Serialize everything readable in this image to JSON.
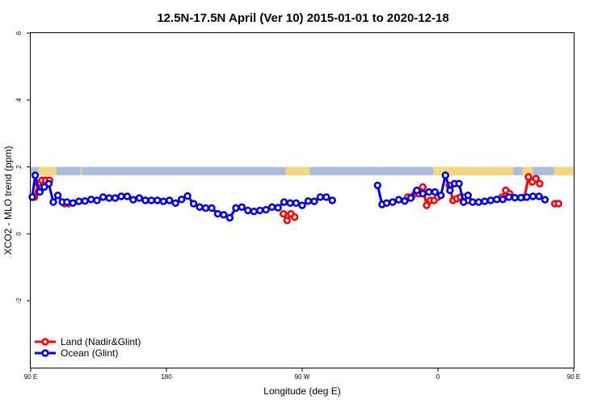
{
  "chart_data": {
    "type": "line",
    "title": "12.5N-17.5N April (Ver 10)   2015-01-01 to 2020-12-18",
    "xlabel": "Longitude (deg E)",
    "ylabel": "XCO2 - MLO trend (ppm)",
    "xlim": [
      90,
      450
    ],
    "ylim": [
      -4,
      6
    ],
    "x_ticks": [
      {
        "value": 90,
        "label": "90 E"
      },
      {
        "value": 180,
        "label": "180"
      },
      {
        "value": 270,
        "label": "90 W"
      },
      {
        "value": 360,
        "label": "0"
      },
      {
        "value": 450,
        "label": "90 E"
      }
    ],
    "y_ticks": [
      {
        "value": -2,
        "label": "-2"
      },
      {
        "value": 0,
        "label": "0"
      },
      {
        "value": 2,
        "label": "2"
      },
      {
        "value": 4,
        "label": "4"
      },
      {
        "value": 6,
        "label": "6"
      }
    ],
    "band": {
      "ymin": 1.75,
      "ymax": 2.0,
      "ocean_color": "#a8bedc",
      "land_color": "#f5d77b"
    },
    "land_spans": [
      [
        95,
        107
      ],
      [
        123,
        124
      ],
      [
        259,
        275
      ],
      [
        357,
        410
      ],
      [
        416,
        423
      ],
      [
        437,
        453
      ],
      [
        460,
        461
      ]
    ],
    "legend_position": "bottom-left",
    "series": [
      {
        "name": "Land (Nadir&Glint)",
        "color": "#ff0000",
        "segments": [
          [
            [
              92.5,
              1.1
            ],
            [
              95,
              1.5
            ],
            [
              97.5,
              1.6
            ],
            [
              100,
              1.6
            ],
            [
              102.5,
              1.6
            ]
          ],
          [
            [
              112.5,
              0.9
            ],
            [
              115,
              0.9
            ]
          ],
          [
            [
              257.5,
              0.6
            ],
            [
              260,
              0.4
            ],
            [
              262.5,
              0.6
            ],
            [
              265,
              0.5
            ]
          ],
          [
            [
              340,
              1.1
            ],
            [
              342.5,
              1.1
            ],
            [
              345,
              1.2
            ],
            [
              347.5,
              1.2
            ],
            [
              350,
              1.4
            ],
            [
              352.5,
              0.85
            ],
            [
              355,
              1.0
            ],
            [
              357.5,
              1.0
            ],
            [
              360,
              1.1
            ]
          ],
          [
            [
              367.5,
              1.45
            ],
            [
              370,
              1.0
            ],
            [
              372.5,
              1.05
            ],
            [
              375,
              1.1
            ],
            [
              377.5,
              1.1
            ],
            [
              380,
              1.0
            ]
          ],
          [
            [
              402.5,
              1.1
            ],
            [
              405,
              1.3
            ],
            [
              407.5,
              1.2
            ]
          ],
          [
            [
              417.5,
              1.1
            ],
            [
              420,
              1.7
            ],
            [
              422.5,
              1.55
            ],
            [
              425,
              1.65
            ],
            [
              427.5,
              1.5
            ]
          ],
          [
            [
              437.5,
              0.9
            ],
            [
              440,
              0.9
            ]
          ]
        ]
      },
      {
        "name": "Ocean (Glint)",
        "color": "#0000ee",
        "segments": [
          [
            [
              91,
              1.1
            ],
            [
              93,
              1.75
            ],
            [
              96,
              1.25
            ],
            [
              99,
              1.4
            ],
            [
              102,
              1.5
            ],
            [
              105,
              0.95
            ],
            [
              108,
              1.15
            ],
            [
              111,
              0.95
            ],
            [
              114,
              0.95
            ],
            [
              118,
              0.92
            ],
            [
              122,
              0.97
            ],
            [
              126,
              0.98
            ],
            [
              130,
              1.03
            ],
            [
              134,
              1.0
            ],
            [
              138,
              1.1
            ],
            [
              142,
              1.07
            ],
            [
              146,
              1.07
            ],
            [
              150,
              1.12
            ],
            [
              154,
              1.12
            ],
            [
              158,
              1.02
            ],
            [
              162,
              1.07
            ],
            [
              166,
              1.0
            ],
            [
              170,
              1.0
            ],
            [
              174,
              1.0
            ],
            [
              178,
              0.97
            ],
            [
              182,
              1.0
            ],
            [
              186,
              0.92
            ],
            [
              190,
              1.03
            ],
            [
              194,
              1.13
            ],
            [
              198,
              0.9
            ],
            [
              202,
              0.8
            ],
            [
              206,
              0.77
            ],
            [
              210,
              0.77
            ],
            [
              214,
              0.6
            ],
            [
              218,
              0.57
            ],
            [
              222,
              0.48
            ],
            [
              226,
              0.77
            ],
            [
              230,
              0.8
            ],
            [
              234,
              0.7
            ],
            [
              238,
              0.67
            ],
            [
              242,
              0.7
            ],
            [
              246,
              0.72
            ],
            [
              250,
              0.8
            ],
            [
              254,
              0.78
            ],
            [
              258,
              0.95
            ],
            [
              262,
              0.92
            ],
            [
              266,
              0.92
            ],
            [
              270,
              0.85
            ],
            [
              274,
              0.98
            ],
            [
              278,
              0.97
            ],
            [
              282,
              1.1
            ],
            [
              286,
              1.1
            ],
            [
              290,
              1.0
            ]
          ],
          [
            [
              320,
              1.45
            ],
            [
              323,
              0.88
            ],
            [
              326,
              0.92
            ],
            [
              330,
              0.95
            ],
            [
              334,
              1.02
            ],
            [
              338,
              0.98
            ],
            [
              342,
              1.07
            ],
            [
              346,
              1.3
            ],
            [
              350,
              1.2
            ],
            [
              354,
              1.25
            ],
            [
              358,
              1.25
            ],
            [
              362,
              1.15
            ],
            [
              365,
              1.75
            ],
            [
              368,
              1.3
            ],
            [
              371,
              1.5
            ],
            [
              374,
              1.5
            ],
            [
              377,
              0.95
            ],
            [
              380,
              1.15
            ],
            [
              383,
              0.95
            ],
            [
              387,
              0.95
            ],
            [
              391,
              0.97
            ],
            [
              395,
              1.0
            ],
            [
              399,
              1.03
            ],
            [
              403,
              1.03
            ],
            [
              407,
              1.1
            ],
            [
              411,
              1.08
            ],
            [
              415,
              1.08
            ],
            [
              419,
              1.1
            ],
            [
              423,
              1.12
            ],
            [
              427,
              1.12
            ],
            [
              431,
              1.02
            ]
          ]
        ]
      }
    ]
  }
}
